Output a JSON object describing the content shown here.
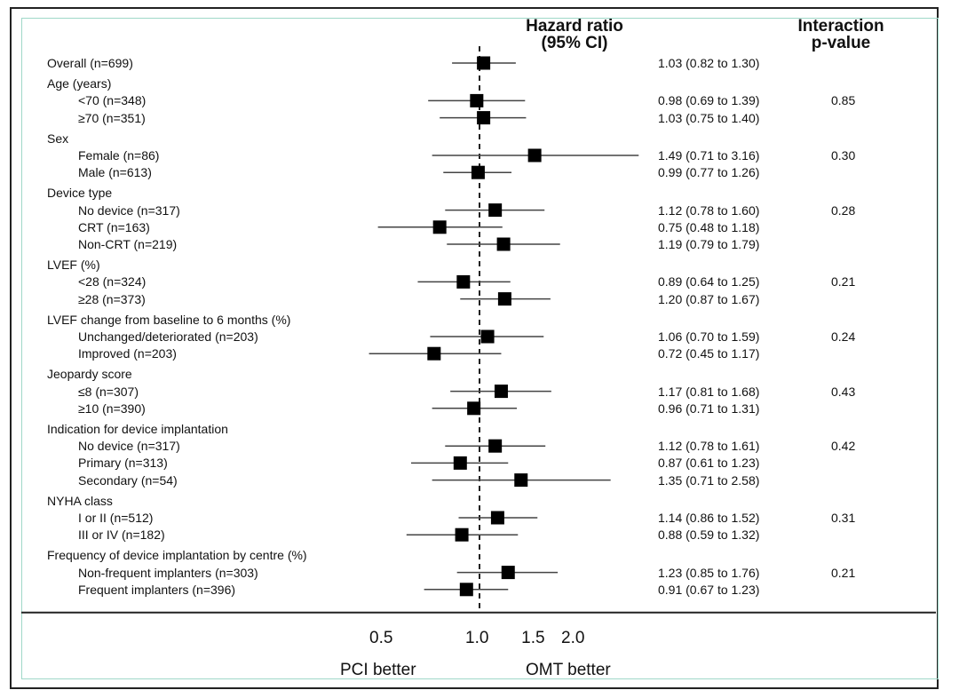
{
  "chart_data": {
    "type": "forest",
    "headers": {
      "hr_line1": "Hazard ratio",
      "hr_line2": "(95% CI)",
      "p_line1": "Interaction",
      "p_line2": "p-value"
    },
    "x_axis": {
      "scale": "log",
      "ticks": [
        {
          "value": 0.5,
          "label": "0.5"
        },
        {
          "value": 1.0,
          "label": "1.0"
        },
        {
          "value": 1.5,
          "label": "1.5"
        },
        {
          "value": 2.0,
          "label": "2.0"
        }
      ],
      "reference_line": 1.0
    },
    "direction_labels": {
      "left": "PCI better",
      "right": "OMT better"
    },
    "rows": [
      {
        "label": "Overall (n=699)",
        "indent": false,
        "hr": 1.03,
        "lo": 0.82,
        "hi": 1.3,
        "ci_text": "1.03 (0.82 to 1.30)",
        "p": ""
      },
      {
        "label": "Age (years)",
        "indent": false,
        "header": true
      },
      {
        "label": "<70 (n=348)",
        "indent": true,
        "hr": 0.98,
        "lo": 0.69,
        "hi": 1.39,
        "ci_text": "0.98 (0.69 to 1.39)",
        "p": "0.85"
      },
      {
        "label": "≥70 (n=351)",
        "indent": true,
        "hr": 1.03,
        "lo": 0.75,
        "hi": 1.4,
        "ci_text": "1.03 (0.75 to 1.40)",
        "p": ""
      },
      {
        "label": "Sex",
        "indent": false,
        "header": true
      },
      {
        "label": "Female (n=86)",
        "indent": true,
        "hr": 1.49,
        "lo": 0.71,
        "hi": 3.16,
        "ci_text": "1.49 (0.71 to 3.16)",
        "p": "0.30"
      },
      {
        "label": "Male (n=613)",
        "indent": true,
        "hr": 0.99,
        "lo": 0.77,
        "hi": 1.26,
        "ci_text": "0.99 (0.77 to 1.26)",
        "p": ""
      },
      {
        "label": "Device type",
        "indent": false,
        "header": true
      },
      {
        "label": "No device (n=317)",
        "indent": true,
        "hr": 1.12,
        "lo": 0.78,
        "hi": 1.6,
        "ci_text": "1.12 (0.78 to 1.60)",
        "p": "0.28"
      },
      {
        "label": "CRT (n=163)",
        "indent": true,
        "hr": 0.75,
        "lo": 0.48,
        "hi": 1.18,
        "ci_text": "0.75 (0.48 to 1.18)",
        "p": ""
      },
      {
        "label": "Non-CRT (n=219)",
        "indent": true,
        "hr": 1.19,
        "lo": 0.79,
        "hi": 1.79,
        "ci_text": "1.19 (0.79 to 1.79)",
        "p": ""
      },
      {
        "label": "LVEF (%)",
        "indent": false,
        "header": true
      },
      {
        "label": "<28 (n=324)",
        "indent": true,
        "hr": 0.89,
        "lo": 0.64,
        "hi": 1.25,
        "ci_text": "0.89 (0.64 to 1.25)",
        "p": "0.21"
      },
      {
        "label": "≥28 (n=373)",
        "indent": true,
        "hr": 1.2,
        "lo": 0.87,
        "hi": 1.67,
        "ci_text": "1.20 (0.87 to 1.67)",
        "p": ""
      },
      {
        "label": "LVEF change from baseline to 6 months (%)",
        "indent": false,
        "header": true
      },
      {
        "label": "Unchanged/deteriorated (n=203)",
        "indent": true,
        "hr": 1.06,
        "lo": 0.7,
        "hi": 1.59,
        "ci_text": "1.06 (0.70 to 1.59)",
        "p": "0.24"
      },
      {
        "label": "Improved (n=203)",
        "indent": true,
        "hr": 0.72,
        "lo": 0.45,
        "hi": 1.17,
        "ci_text": "0.72 (0.45 to 1.17)",
        "p": ""
      },
      {
        "label": "Jeopardy score",
        "indent": false,
        "header": true
      },
      {
        "label": "≤8 (n=307)",
        "indent": true,
        "hr": 1.17,
        "lo": 0.81,
        "hi": 1.68,
        "ci_text": "1.17 (0.81 to 1.68)",
        "p": "0.43"
      },
      {
        "label": "≥10 (n=390)",
        "indent": true,
        "hr": 0.96,
        "lo": 0.71,
        "hi": 1.31,
        "ci_text": "0.96 (0.71 to 1.31)",
        "p": ""
      },
      {
        "label": "Indication for device implantation",
        "indent": false,
        "header": true
      },
      {
        "label": "No device (n=317)",
        "indent": true,
        "hr": 1.12,
        "lo": 0.78,
        "hi": 1.61,
        "ci_text": "1.12 (0.78 to 1.61)",
        "p": "0.42"
      },
      {
        "label": "Primary (n=313)",
        "indent": true,
        "hr": 0.87,
        "lo": 0.61,
        "hi": 1.23,
        "ci_text": "0.87 (0.61 to 1.23)",
        "p": ""
      },
      {
        "label": "Secondary (n=54)",
        "indent": true,
        "hr": 1.35,
        "lo": 0.71,
        "hi": 2.58,
        "ci_text": "1.35 (0.71 to 2.58)",
        "p": ""
      },
      {
        "label": "NYHA class",
        "indent": false,
        "header": true
      },
      {
        "label": "I or II (n=512)",
        "indent": true,
        "hr": 1.14,
        "lo": 0.86,
        "hi": 1.52,
        "ci_text": "1.14 (0.86 to 1.52)",
        "p": "0.31"
      },
      {
        "label": "III or IV (n=182)",
        "indent": true,
        "hr": 0.88,
        "lo": 0.59,
        "hi": 1.32,
        "ci_text": "0.88 (0.59 to 1.32)",
        "p": ""
      },
      {
        "label": "Frequency of device implantation by centre (%)",
        "indent": false,
        "header": true
      },
      {
        "label": "Non-frequent implanters (n=303)",
        "indent": true,
        "hr": 1.23,
        "lo": 0.85,
        "hi": 1.76,
        "ci_text": "1.23 (0.85 to 1.76)",
        "p": "0.21"
      },
      {
        "label": "Frequent implanters (n=396)",
        "indent": true,
        "hr": 0.91,
        "lo": 0.67,
        "hi": 1.23,
        "ci_text": "0.91 (0.67 to 1.23)",
        "p": ""
      }
    ]
  }
}
